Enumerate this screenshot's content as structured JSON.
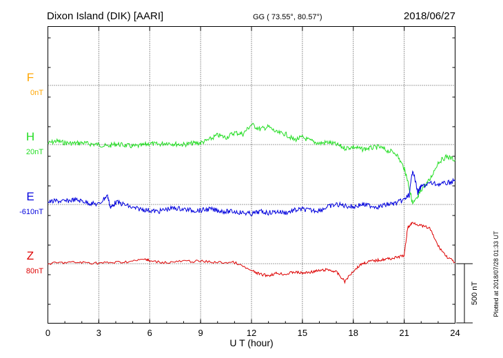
{
  "header": {
    "station": "Dixon Island (DIK)  [AARI]",
    "coords": "GG ( 73.55°,  80.57°)",
    "date": "2018/06/27"
  },
  "footer_note": "Plotted at 2018/07/28 01:33 UT",
  "scale_bar_label": "500 nT",
  "colors": {
    "F": "#FFA500",
    "H": "#22DD22",
    "E": "#0000DD",
    "Z": "#DD0000"
  },
  "chart_data": {
    "type": "line",
    "xlabel": "U T (hour)",
    "xlim": [
      0,
      24
    ],
    "xticks": [
      "0",
      "3",
      "6",
      "9",
      "12",
      "15",
      "18",
      "21",
      "24"
    ],
    "grid": true,
    "scale_bar_nT": 500,
    "series": [
      {
        "name": "F",
        "baseline_label": "0nT",
        "color": "#FFA500",
        "x": [],
        "y": []
      },
      {
        "name": "H",
        "baseline_label": "20nT",
        "color": "#22DD22",
        "x": [
          0,
          0.5,
          1,
          1.5,
          2,
          2.5,
          3,
          3.5,
          4,
          4.5,
          5,
          5.5,
          6,
          6.5,
          7,
          7.5,
          8,
          8.5,
          9,
          9.5,
          10,
          10.5,
          11,
          11.5,
          12,
          12.5,
          13,
          13.5,
          14,
          14.5,
          15,
          15.5,
          16,
          16.5,
          17,
          17.5,
          18,
          18.5,
          19,
          19.5,
          20,
          20.5,
          21,
          21.2,
          21.5,
          21.8,
          22,
          22.5,
          23,
          23.5,
          24
        ],
        "y": [
          10,
          30,
          15,
          10,
          15,
          5,
          0,
          -15,
          5,
          -5,
          -15,
          -10,
          10,
          0,
          15,
          5,
          0,
          10,
          15,
          40,
          80,
          60,
          100,
          90,
          170,
          130,
          150,
          100,
          90,
          40,
          60,
          30,
          10,
          20,
          0,
          -30,
          -20,
          -40,
          -30,
          -20,
          -50,
          -70,
          -200,
          -300,
          -500,
          -450,
          -380,
          -300,
          -150,
          -100,
          -130
        ]
      },
      {
        "name": "E",
        "baseline_label": "-610nT",
        "color": "#0000DD",
        "x": [
          0,
          0.5,
          1,
          1.5,
          2,
          2.5,
          3,
          3.5,
          3.7,
          4,
          4.5,
          5,
          5.5,
          6,
          6.5,
          7,
          7.5,
          8,
          8.5,
          9,
          9.5,
          10,
          10.5,
          11,
          11.5,
          12,
          12.5,
          13,
          13.5,
          14,
          14.5,
          15,
          15.5,
          16,
          16.5,
          17,
          17.5,
          18,
          18.5,
          19,
          19.5,
          20,
          20.5,
          21,
          21.3,
          21.5,
          21.8,
          22,
          22.5,
          23,
          23.5,
          24
        ],
        "y": [
          20,
          30,
          25,
          40,
          30,
          10,
          0,
          80,
          -30,
          20,
          0,
          -30,
          -40,
          -50,
          -60,
          -40,
          -30,
          -40,
          -50,
          -50,
          -40,
          -50,
          -60,
          -60,
          -70,
          -80,
          -60,
          -70,
          -60,
          -70,
          -50,
          -40,
          -50,
          -50,
          -20,
          0,
          -10,
          -20,
          0,
          -10,
          -20,
          0,
          10,
          40,
          80,
          300,
          100,
          150,
          180,
          170,
          180,
          200
        ]
      },
      {
        "name": "Z",
        "baseline_label": "80nT",
        "color": "#DD0000",
        "x": [
          0,
          1,
          2,
          3,
          4,
          5,
          5.8,
          6,
          7,
          8,
          9,
          10,
          11,
          12,
          12.5,
          13,
          13.5,
          14,
          14.5,
          15,
          15.5,
          16,
          16.5,
          17,
          17.5,
          18,
          18.5,
          19,
          19.5,
          20,
          20.5,
          21,
          21.2,
          21.5,
          22,
          22.5,
          23,
          23.5,
          24
        ],
        "y": [
          0,
          10,
          10,
          5,
          10,
          20,
          40,
          20,
          10,
          20,
          20,
          10,
          10,
          -60,
          -90,
          -100,
          -80,
          -90,
          -70,
          -80,
          -70,
          -60,
          -50,
          -70,
          -150,
          -60,
          0,
          20,
          30,
          40,
          50,
          70,
          300,
          350,
          320,
          300,
          150,
          60,
          10
        ]
      }
    ]
  }
}
